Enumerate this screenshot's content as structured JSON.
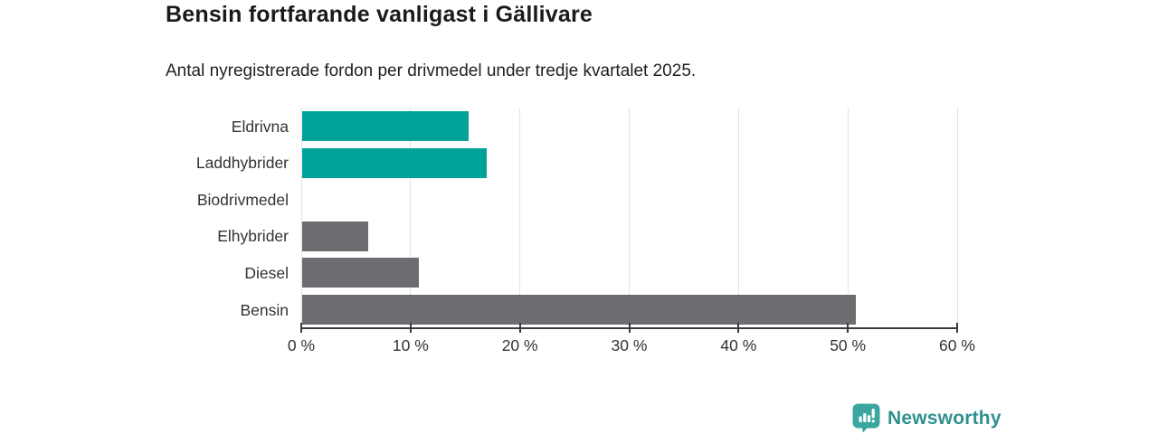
{
  "header": {
    "title": "Bensin fortfarande vanligast i Gällivare",
    "subtitle": "Antal nyregistrerade fordon per drivmedel under tredje kvartalet 2025."
  },
  "chart_data": {
    "type": "bar",
    "orientation": "horizontal",
    "title": "Bensin fortfarande vanligast i Gällivare",
    "subtitle": "Antal nyregistrerade fordon per drivmedel under tredje kvartalet 2025.",
    "categories": [
      "Eldrivna",
      "Laddhybrider",
      "Biodrivmedel",
      "Elhybrider",
      "Diesel",
      "Bensin"
    ],
    "values": [
      15.3,
      16.9,
      0,
      6.1,
      10.7,
      50.7
    ],
    "unit": "%",
    "bar_colors": [
      "#00a29a",
      "#00a29a",
      "#00a29a",
      "#6c6c71",
      "#6c6c71",
      "#6c6c71"
    ],
    "xlim": [
      0,
      60
    ],
    "xtick_values": [
      0,
      10,
      20,
      30,
      40,
      50,
      60
    ],
    "xtick_labels": [
      "0 %",
      "10 %",
      "20 %",
      "30 %",
      "40 %",
      "50 %",
      "60 %"
    ],
    "grid": "vertical",
    "legend": "none",
    "colors": {
      "electric_series": "#00a29a",
      "fossil_series": "#6c6c71",
      "gridline": "#e2e2e2",
      "axis": "#3a3a3e"
    }
  },
  "footer": {
    "brand": "Newsworthy",
    "brand_color": "#2f908e",
    "icon": "newsworthy-speech-bubble-bar-chart-icon",
    "icon_color": "#3aa69f"
  }
}
